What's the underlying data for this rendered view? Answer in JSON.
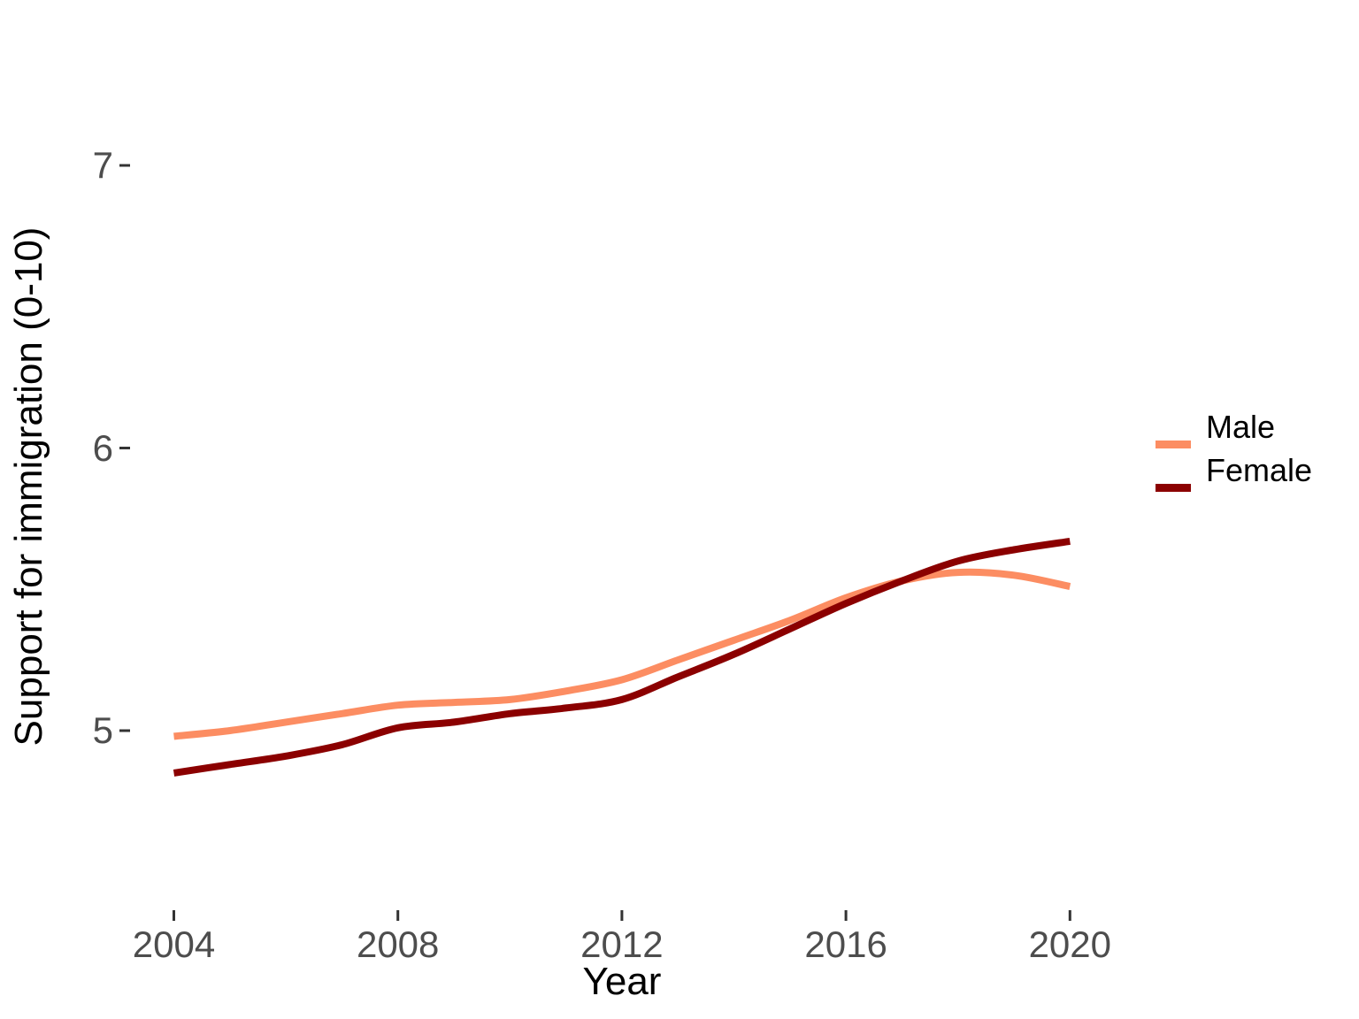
{
  "figure": {
    "background": "#ffffff",
    "tick_mark_color": "#333333",
    "tick_label_color": "#4d4d4d",
    "title_color": "#000000"
  },
  "legend": {
    "items": [
      {
        "label": "Male",
        "color": "#FC8D62"
      },
      {
        "label": "Female",
        "color": "#8B0000"
      }
    ]
  },
  "chart_data": {
    "type": "line",
    "title": "",
    "xlabel": "Year",
    "ylabel": "Support for immigration (0-10)",
    "x": [
      2004,
      2005,
      2006,
      2007,
      2008,
      2009,
      2010,
      2011,
      2012,
      2013,
      2014,
      2015,
      2016,
      2017,
      2018,
      2019,
      2020
    ],
    "series": [
      {
        "name": "Male",
        "color": "#FC8D62",
        "values": [
          4.98,
          5.0,
          5.03,
          5.06,
          5.09,
          5.1,
          5.11,
          5.14,
          5.18,
          5.25,
          5.32,
          5.39,
          5.47,
          5.53,
          5.56,
          5.55,
          5.51
        ]
      },
      {
        "name": "Female",
        "color": "#8B0000",
        "values": [
          4.85,
          4.88,
          4.91,
          4.95,
          5.01,
          5.03,
          5.06,
          5.08,
          5.11,
          5.19,
          5.27,
          5.36,
          5.45,
          5.53,
          5.6,
          5.64,
          5.67
        ]
      }
    ],
    "x_ticks": [
      "2004",
      "2008",
      "2012",
      "2016",
      "2020"
    ],
    "x_tick_values": [
      2004,
      2008,
      2012,
      2016,
      2020
    ],
    "y_ticks": [
      "5",
      "6",
      "7"
    ],
    "y_tick_values": [
      5,
      6,
      7
    ],
    "xlim": [
      2003.4,
      2021.3
    ],
    "ylim": [
      4.4,
      7.55
    ],
    "grid": false,
    "legend_position": "right"
  }
}
